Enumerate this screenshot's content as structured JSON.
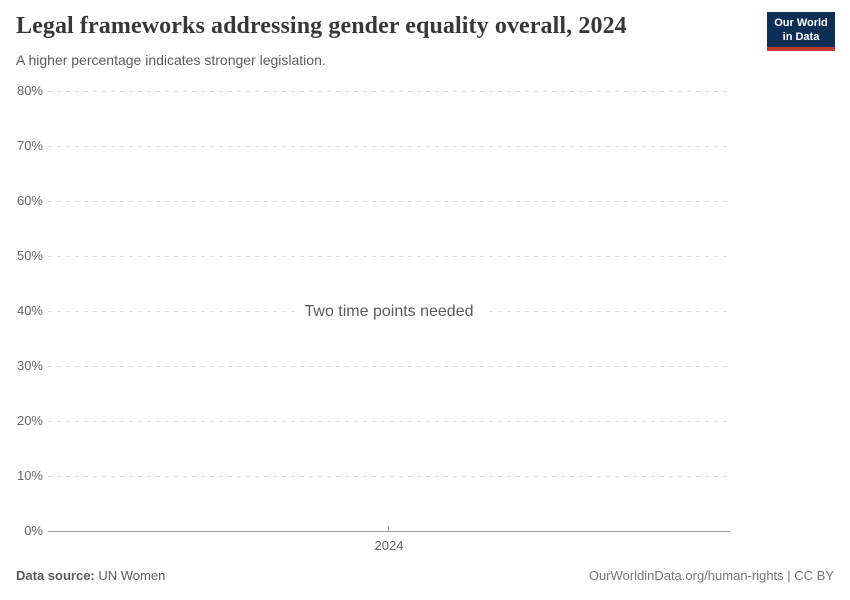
{
  "header": {
    "title": "Legal frameworks addressing gender equality overall, 2024",
    "subtitle": "A higher percentage indicates stronger legislation.",
    "logo": {
      "line1": "Our World",
      "line2": "in Data"
    }
  },
  "chart_data": {
    "type": "line",
    "title": "Legal frameworks addressing gender equality overall, 2024",
    "subtitle": "A higher percentage indicates stronger legislation.",
    "series": [],
    "empty_message": "Two time points needed",
    "x_ticks": [
      "2024"
    ],
    "y_ticks": [
      "0%",
      "10%",
      "20%",
      "30%",
      "40%",
      "50%",
      "60%",
      "70%",
      "80%"
    ],
    "ylim": [
      0,
      80
    ],
    "y_tick_step": 10,
    "xlabel": "",
    "ylabel": "",
    "grid": "horizontal-dashed",
    "legend": "none"
  },
  "footer": {
    "source_label": "Data source:",
    "source_value": "UN Women",
    "right_text": "OurWorldinData.org/human-rights | CC BY"
  },
  "colors": {
    "background": "#ffffff",
    "title": "#383838",
    "subtitle": "#5b5b5b",
    "axis_label": "#666666",
    "gridline": "#dcdcdc",
    "axis_line": "#a1a1a1",
    "empty_message": "#5b5b5b",
    "footer_text": "#5b5b5b",
    "footer_link": "#777777",
    "logo_bg": "#0e2f55",
    "logo_accent": "#c0392b"
  }
}
